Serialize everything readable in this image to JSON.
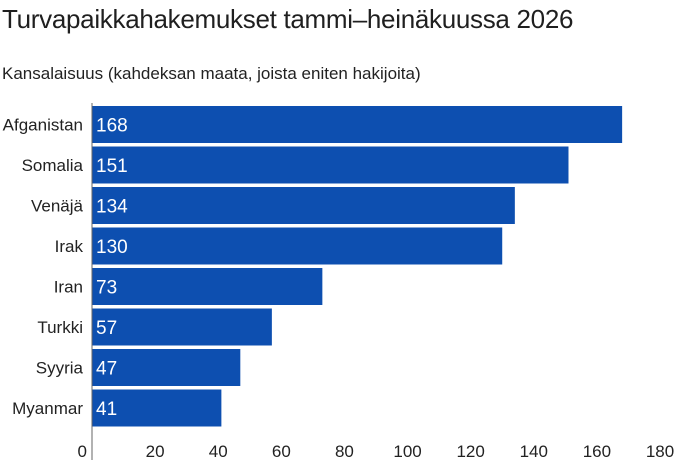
{
  "chart_data": {
    "type": "bar",
    "orientation": "horizontal",
    "title": "Turvapaikkahakemukset tammi–heinäkuussa 2026",
    "subtitle": "Kansalaisuus (kahdeksan maata, joista eniten hakijoita)",
    "categories": [
      "Afganistan",
      "Somalia",
      "Venäjä",
      "Irak",
      "Iran",
      "Turkki",
      "Syyria",
      "Myanmar"
    ],
    "values": [
      168,
      151,
      134,
      130,
      73,
      57,
      47,
      41
    ],
    "xlim": [
      0,
      180
    ],
    "xticks": [
      0,
      20,
      40,
      60,
      80,
      100,
      120,
      140,
      160,
      180
    ],
    "grid": false,
    "legend": "none",
    "bar_color": "#0d4fb0",
    "label_color": "#ffffff"
  }
}
